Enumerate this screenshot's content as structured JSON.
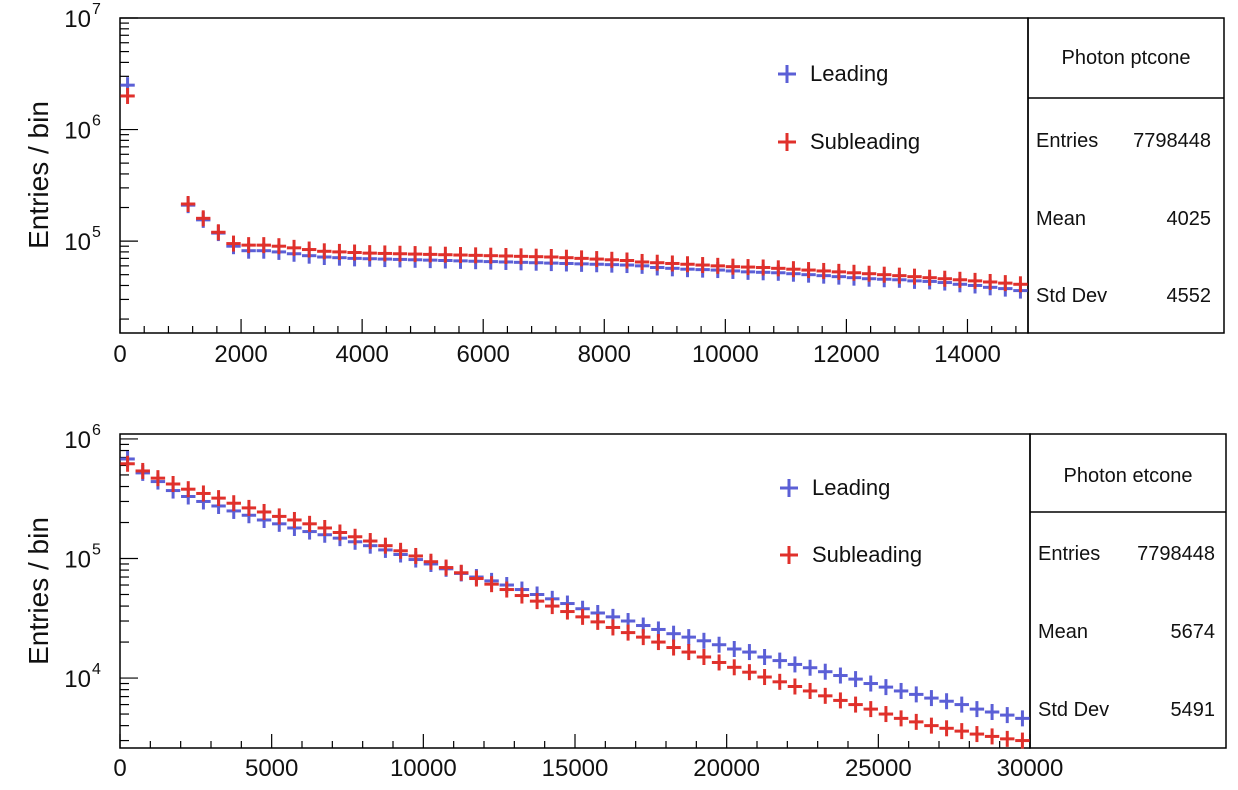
{
  "colors": {
    "leading": "#5b5fd6",
    "subleading": "#e0302b",
    "axis": "#000000",
    "background": "#ffffff"
  },
  "chart_data": [
    {
      "type": "scatter",
      "marker": "cross-errorbar",
      "ylabel": "Entries / bin",
      "xlabel": "",
      "yscale": "log",
      "xlim": [
        0,
        15000
      ],
      "ylim": [
        15000,
        10000000
      ],
      "grid": false,
      "legend_position": "top-right",
      "x_ticks": [
        "0",
        "2000",
        "4000",
        "6000",
        "8000",
        "10000",
        "12000",
        "14000"
      ],
      "y_ticks": [
        {
          "base": "10",
          "exp": "5",
          "value": 100000
        },
        {
          "base": "10",
          "exp": "6",
          "value": 1000000
        },
        {
          "base": "10",
          "exp": "7",
          "value": 10000000
        }
      ],
      "stats_box": {
        "title": "Photon ptcone",
        "rows": [
          {
            "label": "Entries",
            "value": "7798448"
          },
          {
            "label": "Mean",
            "value": "4025"
          },
          {
            "label": "Std Dev",
            "value": "4552"
          }
        ]
      },
      "series": [
        {
          "name": "Leading",
          "color": "#5b5fd6",
          "x": [
            125,
            1125,
            1375,
            1625,
            1875,
            2125,
            2375,
            2625,
            2875,
            3125,
            3375,
            3625,
            3875,
            4125,
            4375,
            4625,
            4875,
            5125,
            5375,
            5625,
            5875,
            6125,
            6375,
            6625,
            6875,
            7125,
            7375,
            7625,
            7875,
            8125,
            8375,
            8625,
            8875,
            9125,
            9375,
            9625,
            9875,
            10125,
            10375,
            10625,
            10875,
            11125,
            11375,
            11625,
            11875,
            12125,
            12375,
            12625,
            12875,
            13125,
            13375,
            13625,
            13875,
            14125,
            14375,
            14625,
            14875
          ],
          "y": [
            2500000,
            210000,
            155000,
            118000,
            90000,
            82000,
            82000,
            80000,
            77000,
            74000,
            72000,
            71000,
            70000,
            69500,
            69000,
            68500,
            68000,
            67500,
            67000,
            66500,
            66000,
            65500,
            65000,
            64500,
            64000,
            63500,
            63000,
            62500,
            62000,
            61500,
            61000,
            60000,
            58000,
            57000,
            56000,
            55500,
            55000,
            54000,
            53000,
            52500,
            52000,
            51000,
            50000,
            49000,
            48000,
            47000,
            46000,
            45500,
            45000,
            44000,
            43500,
            42500,
            41000,
            40000,
            38500,
            37500,
            36000
          ]
        },
        {
          "name": "Subleading",
          "color": "#e0302b",
          "x": [
            125,
            1125,
            1375,
            1625,
            1875,
            2125,
            2375,
            2625,
            2875,
            3125,
            3375,
            3625,
            3875,
            4125,
            4375,
            4625,
            4875,
            5125,
            5375,
            5625,
            5875,
            6125,
            6375,
            6625,
            6875,
            7125,
            7375,
            7625,
            7875,
            8125,
            8375,
            8625,
            8875,
            9125,
            9375,
            9625,
            9875,
            10125,
            10375,
            10625,
            10875,
            11125,
            11375,
            11625,
            11875,
            12125,
            12375,
            12625,
            12875,
            13125,
            13375,
            13625,
            13875,
            14125,
            14375,
            14625,
            14875
          ],
          "y": [
            2000000,
            215000,
            160000,
            120000,
            95000,
            92000,
            92000,
            90000,
            87000,
            84000,
            81000,
            80000,
            79000,
            78000,
            77500,
            77000,
            76500,
            76000,
            75500,
            75000,
            74500,
            74000,
            73500,
            73000,
            72500,
            72000,
            71000,
            70000,
            69000,
            68000,
            67000,
            65000,
            64000,
            63000,
            62000,
            61000,
            60000,
            59000,
            58500,
            58000,
            57000,
            56000,
            55000,
            54000,
            53000,
            52000,
            51000,
            50000,
            49000,
            48000,
            47000,
            46000,
            45000,
            44000,
            43000,
            42000,
            41000
          ]
        }
      ]
    },
    {
      "type": "scatter",
      "marker": "cross-errorbar",
      "ylabel": "Entries / bin",
      "xlabel": "",
      "yscale": "log",
      "xlim": [
        0,
        30000
      ],
      "ylim": [
        2600,
        1100000
      ],
      "grid": false,
      "legend_position": "top-right",
      "x_ticks": [
        "0",
        "5000",
        "10000",
        "15000",
        "20000",
        "25000",
        "30000"
      ],
      "y_ticks": [
        {
          "base": "10",
          "exp": "4",
          "value": 10000
        },
        {
          "base": "10",
          "exp": "5",
          "value": 100000
        },
        {
          "base": "10",
          "exp": "6",
          "value": 1000000
        }
      ],
      "stats_box": {
        "title": "Photon etcone",
        "rows": [
          {
            "label": "Entries",
            "value": "7798448"
          },
          {
            "label": "Mean",
            "value": "5674"
          },
          {
            "label": "Std Dev",
            "value": "5491"
          }
        ]
      },
      "series": [
        {
          "name": "Leading",
          "color": "#5b5fd6",
          "x": [
            250,
            750,
            1250,
            1750,
            2250,
            2750,
            3250,
            3750,
            4250,
            4750,
            5250,
            5750,
            6250,
            6750,
            7250,
            7750,
            8250,
            8750,
            9250,
            9750,
            10250,
            10750,
            11250,
            11750,
            12250,
            12750,
            13250,
            13750,
            14250,
            14750,
            15250,
            15750,
            16250,
            16750,
            17250,
            17750,
            18250,
            18750,
            19250,
            19750,
            20250,
            20750,
            21250,
            21750,
            22250,
            22750,
            23250,
            23750,
            24250,
            24750,
            25250,
            25750,
            26250,
            26750,
            27250,
            27750,
            28250,
            28750,
            29250,
            29750
          ],
          "y": [
            680000,
            520000,
            440000,
            370000,
            330000,
            300000,
            275000,
            250000,
            230000,
            210000,
            195000,
            180000,
            168000,
            158000,
            148000,
            138000,
            128000,
            118000,
            108000,
            98000,
            90000,
            82000,
            75000,
            70000,
            65000,
            60000,
            55000,
            50000,
            46000,
            42000,
            38000,
            35000,
            32500,
            30000,
            27500,
            25500,
            23500,
            22000,
            20500,
            19000,
            17500,
            16500,
            15000,
            14000,
            13000,
            12200,
            11300,
            10500,
            9800,
            9000,
            8400,
            7800,
            7300,
            6800,
            6400,
            6000,
            5500,
            5200,
            4900,
            4600
          ]
        },
        {
          "name": "Subleading",
          "color": "#e0302b",
          "x": [
            250,
            750,
            1250,
            1750,
            2250,
            2750,
            3250,
            3750,
            4250,
            4750,
            5250,
            5750,
            6250,
            6750,
            7250,
            7750,
            8250,
            8750,
            9250,
            9750,
            10250,
            10750,
            11250,
            11750,
            12250,
            12750,
            13250,
            13750,
            14250,
            14750,
            15250,
            15750,
            16250,
            16750,
            17250,
            17750,
            18250,
            18750,
            19250,
            19750,
            20250,
            20750,
            21250,
            21750,
            22250,
            22750,
            23250,
            23750,
            24250,
            24750,
            25250,
            25750,
            26250,
            26750,
            27250,
            27750,
            28250,
            28750,
            29250,
            29750
          ],
          "y": [
            620000,
            540000,
            470000,
            420000,
            380000,
            350000,
            320000,
            290000,
            265000,
            245000,
            225000,
            210000,
            195000,
            180000,
            165000,
            152000,
            140000,
            128000,
            116000,
            105000,
            94000,
            84000,
            76000,
            68000,
            61000,
            55000,
            49000,
            44000,
            40000,
            36000,
            32500,
            29500,
            26500,
            24000,
            22000,
            20000,
            18000,
            16500,
            15000,
            13500,
            12300,
            11200,
            10200,
            9300,
            8500,
            7800,
            7100,
            6500,
            6000,
            5500,
            5000,
            4600,
            4300,
            4000,
            3800,
            3600,
            3400,
            3250,
            3100,
            3000
          ]
        }
      ]
    }
  ]
}
